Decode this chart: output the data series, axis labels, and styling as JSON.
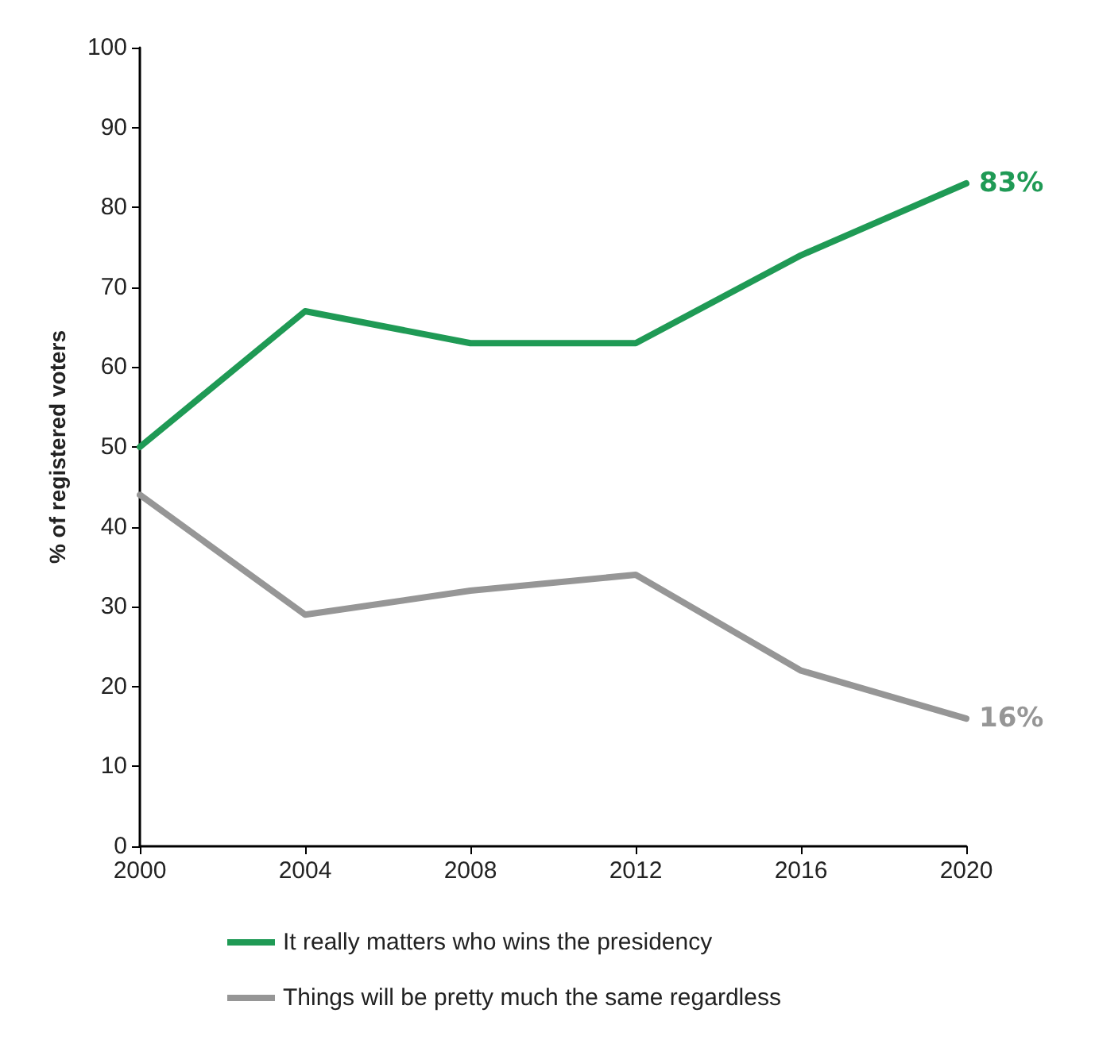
{
  "chart_data": {
    "type": "line",
    "ylabel": "% of registered voters",
    "x": [
      2000,
      2004,
      2008,
      2012,
      2016,
      2020
    ],
    "series": [
      {
        "name": "It really matters who wins the presidency",
        "color": "#1f9a55",
        "values": [
          50,
          67,
          63,
          63,
          74,
          83
        ],
        "value_labels": [
          null,
          null,
          null,
          null,
          null,
          "83%"
        ]
      },
      {
        "name": "Things will be pretty much the same regardless",
        "color": "#969696",
        "values": [
          44,
          29,
          32,
          34,
          22,
          16
        ],
        "value_labels": [
          null,
          null,
          null,
          null,
          null,
          "16%"
        ]
      }
    ],
    "xlim": [
      2000,
      2020
    ],
    "xticks": [
      2000,
      2004,
      2008,
      2012,
      2016,
      2020
    ],
    "ylim": [
      0,
      100
    ],
    "yticks": [
      0,
      10,
      20,
      30,
      40,
      50,
      60,
      70,
      80,
      90,
      100
    ],
    "grid": false,
    "legend": "bottom",
    "marker": "none",
    "line_style": "solid"
  }
}
